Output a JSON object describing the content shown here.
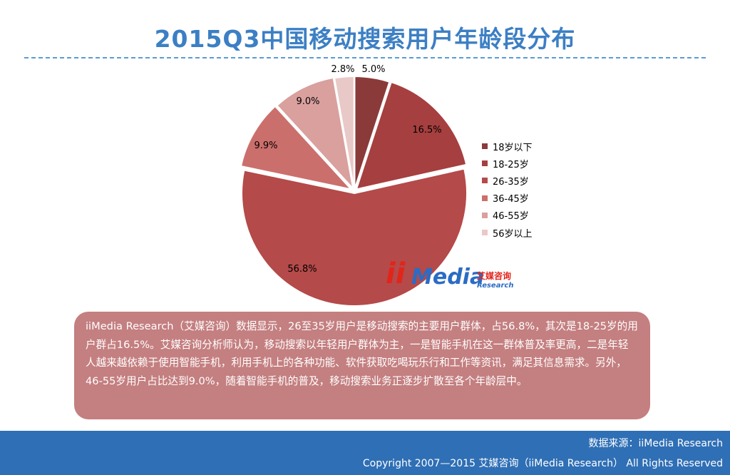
{
  "title": "2015Q3中国移动搜索用户年龄段分布",
  "chart_data": {
    "type": "pie",
    "title": "",
    "slices": [
      {
        "label": "18岁以下",
        "value": 5.0,
        "display": "5.0%",
        "color": "#8b3a3a"
      },
      {
        "label": "18-25岁",
        "value": 16.5,
        "display": "16.5%",
        "color": "#a63f3f"
      },
      {
        "label": "26-35岁",
        "value": 56.8,
        "display": "56.8%",
        "color": "#b44a49"
      },
      {
        "label": "36-45岁",
        "value": 9.9,
        "display": "9.9%",
        "color": "#cb6f6c"
      },
      {
        "label": "46-55岁",
        "value": 9.0,
        "display": "9.0%",
        "color": "#d9a09e"
      },
      {
        "label": "56岁以上",
        "value": 2.8,
        "display": "2.8%",
        "color": "#e8c9c8"
      }
    ],
    "legend_position": "right",
    "start_angle_deg": 0,
    "direction": "clockwise"
  },
  "logo": {
    "ii": "ii",
    "media": "Media",
    "cn": "艾媒咨询",
    "en": "Research"
  },
  "summary_text": "iiMedia Research（艾媒咨询）数据显示，26至35岁用户是移动搜索的主要用户群体，占56.8%，其次是18-25岁的用户群占16.5%。艾媒咨询分析师认为，移动搜索以年轻用户群体为主，一是智能手机在这一群体普及率更高，二是年轻人越来越依赖于使用智能手机，利用手机上的各种功能、软件获取吃喝玩乐行和工作等资讯，满足其信息需求。另外，46-55岁用户占比达到9.0%，随着智能手机的普及，移动搜索业务正逐步扩散至各个年龄层中。",
  "footer": {
    "source": "数据来源：iiMedia Research",
    "copyright": "Copyright 2007—2015 艾媒咨询（iiMedia Research） All Rights Reserved"
  }
}
